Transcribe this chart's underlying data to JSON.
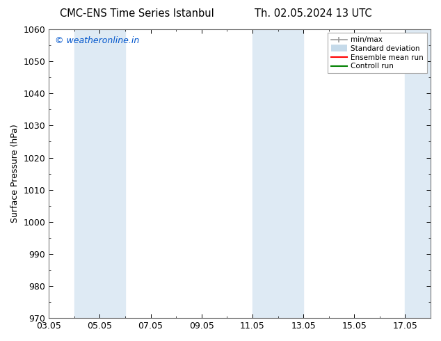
{
  "title_left": "CMC-ENS Time Series Istanbul",
  "title_right": "Th. 02.05.2024 13 UTC",
  "ylabel": "Surface Pressure (hPa)",
  "watermark": "© weatheronline.in",
  "watermark_color": "#0055cc",
  "ylim": [
    970,
    1060
  ],
  "yticks": [
    970,
    980,
    990,
    1000,
    1010,
    1020,
    1030,
    1040,
    1050,
    1060
  ],
  "xtick_labels": [
    "03.05",
    "05.05",
    "07.05",
    "09.05",
    "11.05",
    "13.05",
    "15.05",
    "17.05"
  ],
  "xtick_positions": [
    0,
    2,
    4,
    6,
    8,
    10,
    12,
    14
  ],
  "xlim": [
    0,
    15
  ],
  "shaded_bands": [
    {
      "x_start": 1,
      "x_end": 3,
      "color": "#deeaf4"
    },
    {
      "x_start": 8,
      "x_end": 10,
      "color": "#deeaf4"
    },
    {
      "x_start": 14,
      "x_end": 15,
      "color": "#deeaf4"
    }
  ],
  "legend_entries": [
    {
      "label": "min/max",
      "color": "#aaaaaa",
      "lw": 1.2
    },
    {
      "label": "Standard deviation",
      "color": "#c5daea",
      "lw": 7
    },
    {
      "label": "Ensemble mean run",
      "color": "#ff0000",
      "lw": 1.5
    },
    {
      "label": "Controll run",
      "color": "#008000",
      "lw": 1.5
    }
  ],
  "background_color": "#ffffff",
  "plot_bg_color": "#ffffff",
  "tick_color": "#000000",
  "font_size": 9,
  "title_font_size": 10.5,
  "watermark_font_size": 9
}
